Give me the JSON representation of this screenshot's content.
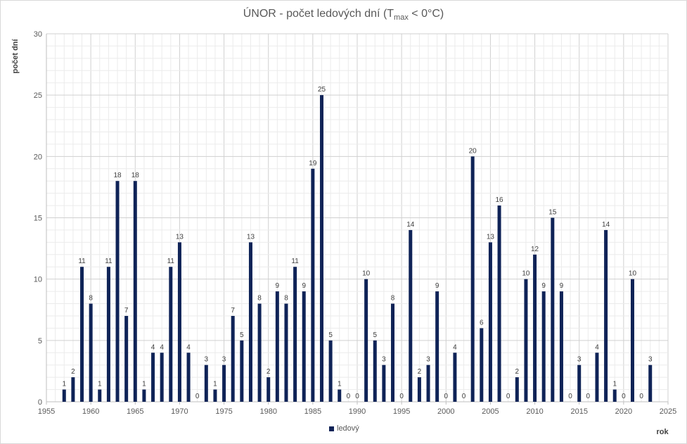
{
  "chart_data": {
    "type": "bar",
    "title_prefix": "ÚNOR - počet ledových dní (T",
    "title_sub": "max",
    "title_suffix": " < 0°C)",
    "xlabel": "rok",
    "ylabel": "počet dní",
    "xlim": [
      1955,
      2025
    ],
    "ylim": [
      0,
      30
    ],
    "xticks": [
      1955,
      1960,
      1965,
      1970,
      1975,
      1980,
      1985,
      1990,
      1995,
      2000,
      2005,
      2010,
      2015,
      2020,
      2025
    ],
    "yticks": [
      0,
      5,
      10,
      15,
      20,
      25,
      30
    ],
    "grid": true,
    "legend_position": "bottom",
    "bar_color": "#0f2357",
    "series": [
      {
        "name": "ledový",
        "x": [
          1957,
          1958,
          1959,
          1960,
          1961,
          1962,
          1963,
          1964,
          1965,
          1966,
          1967,
          1968,
          1969,
          1970,
          1971,
          1972,
          1973,
          1974,
          1975,
          1976,
          1977,
          1978,
          1979,
          1980,
          1981,
          1982,
          1983,
          1984,
          1985,
          1986,
          1987,
          1988,
          1989,
          1990,
          1991,
          1992,
          1993,
          1994,
          1995,
          1996,
          1997,
          1998,
          1999,
          2000,
          2001,
          2002,
          2003,
          2004,
          2005,
          2006,
          2007,
          2008,
          2009,
          2010,
          2011,
          2012,
          2013,
          2014,
          2015,
          2016,
          2017,
          2018,
          2019,
          2020,
          2021,
          2022,
          2023
        ],
        "values": [
          1,
          2,
          11,
          8,
          1,
          11,
          18,
          7,
          18,
          1,
          4,
          4,
          11,
          13,
          4,
          0,
          3,
          1,
          3,
          7,
          5,
          13,
          8,
          2,
          9,
          8,
          11,
          9,
          19,
          25,
          5,
          1,
          0,
          0,
          10,
          5,
          3,
          8,
          0,
          14,
          2,
          3,
          9,
          0,
          4,
          0,
          20,
          6,
          13,
          16,
          0,
          2,
          10,
          12,
          9,
          15,
          9,
          0,
          3,
          0,
          4,
          14,
          1,
          0,
          10,
          0,
          3
        ]
      }
    ]
  }
}
